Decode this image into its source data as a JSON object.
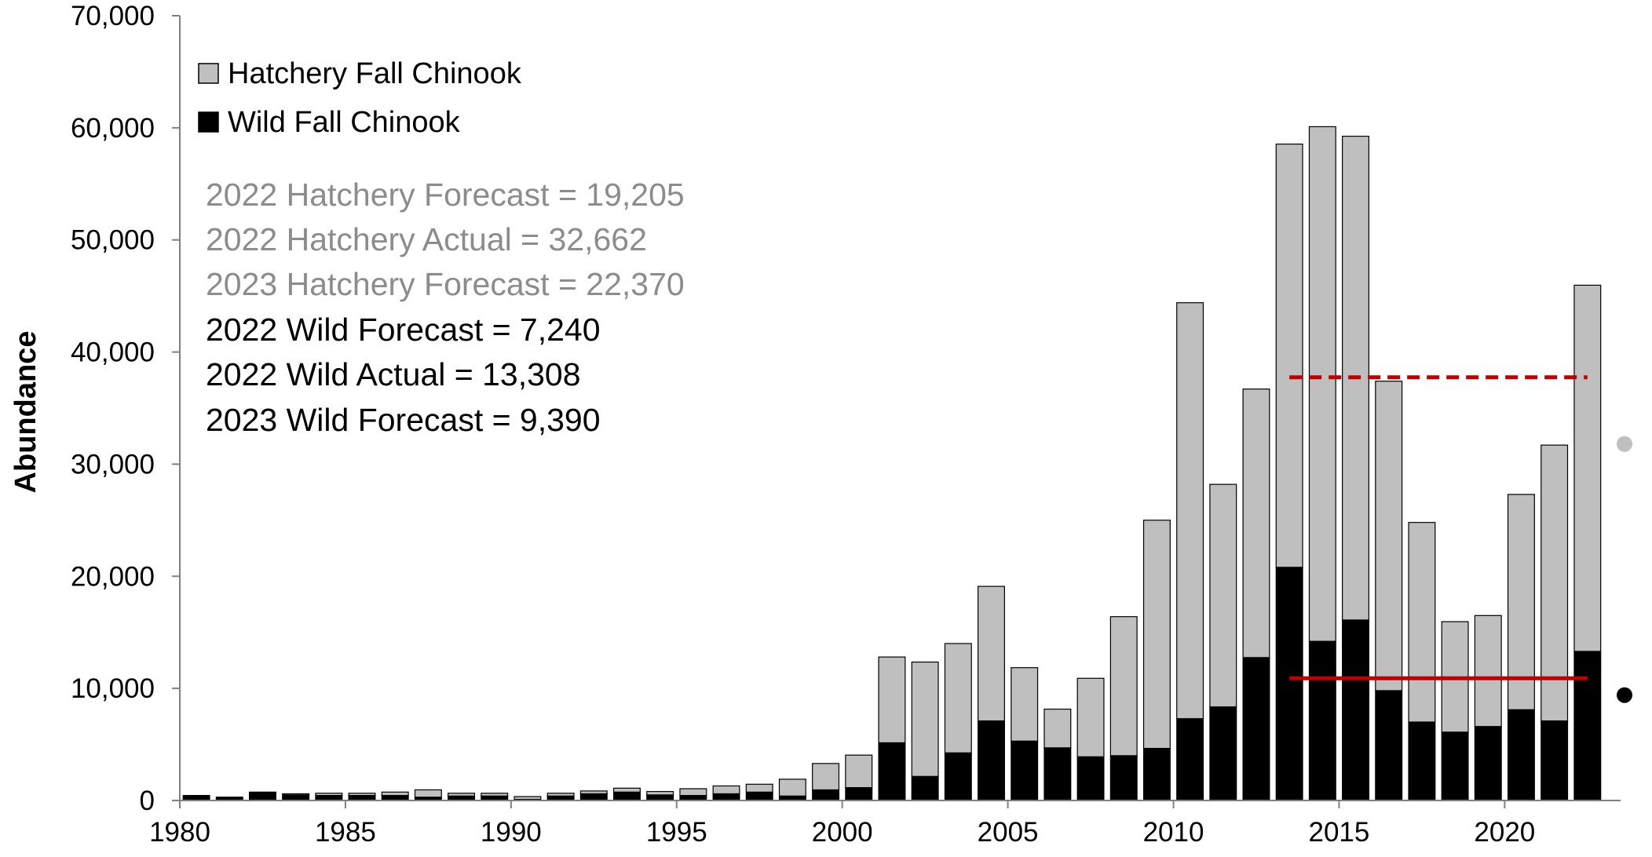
{
  "chart_data": {
    "type": "bar",
    "stacked": true,
    "ylabel": "Abundance",
    "xlabel": "",
    "ylim": [
      0,
      70000
    ],
    "y_ticks": [
      0,
      10000,
      20000,
      30000,
      40000,
      50000,
      60000,
      70000
    ],
    "y_tick_labels": [
      "0",
      "10,000",
      "20,000",
      "30,000",
      "40,000",
      "50,000",
      "60,000",
      "70,000"
    ],
    "x_tick_years": [
      1980,
      1985,
      1990,
      1995,
      2000,
      2005,
      2010,
      2015,
      2020
    ],
    "x_tick_labels": [
      "1980",
      "1985",
      "1990",
      "1995",
      "2000",
      "2005",
      "2010",
      "2015",
      "2020"
    ],
    "categories": [
      1980,
      1981,
      1982,
      1983,
      1984,
      1985,
      1986,
      1987,
      1988,
      1989,
      1990,
      1991,
      1992,
      1993,
      1994,
      1995,
      1996,
      1997,
      1998,
      1999,
      2000,
      2001,
      2002,
      2003,
      2004,
      2005,
      2006,
      2007,
      2008,
      2009,
      2010,
      2011,
      2012,
      2013,
      2014,
      2015,
      2016,
      2017,
      2018,
      2019,
      2020,
      2021,
      2022
    ],
    "series": [
      {
        "name": "Wild Fall Chinook",
        "color": "#000000",
        "values": [
          450,
          300,
          750,
          500,
          450,
          450,
          450,
          300,
          400,
          400,
          100,
          400,
          600,
          750,
          500,
          450,
          600,
          750,
          400,
          950,
          1150,
          5150,
          2150,
          4250,
          7100,
          5300,
          4700,
          3900,
          4000,
          4650,
          7300,
          8350,
          12750,
          20800,
          14200,
          16100,
          9800,
          7000,
          6100,
          6600,
          8100,
          7100,
          13300
        ]
      },
      {
        "name": "Hatchery Fall Chinook",
        "color": "#bfbfbf",
        "values": [
          0,
          0,
          0,
          100,
          200,
          200,
          300,
          650,
          250,
          250,
          250,
          250,
          250,
          350,
          300,
          600,
          700,
          700,
          1500,
          2350,
          2900,
          7650,
          10200,
          9750,
          12000,
          6550,
          3450,
          7000,
          12400,
          20350,
          37100,
          19850,
          23950,
          37750,
          45900,
          43150,
          27600,
          17800,
          9850,
          9900,
          19200,
          24600,
          32662
        ]
      }
    ],
    "forecast_lines": [
      {
        "label": "Hatchery forecast",
        "y": 37750,
        "x_start": 2013,
        "x_end": 2022,
        "style": "dashed",
        "color": "#c00000"
      },
      {
        "label": "Wild forecast",
        "y": 10900,
        "x_start": 2013,
        "x_end": 2022,
        "style": "solid",
        "color": "#c00000"
      }
    ],
    "forecast_points": [
      {
        "label": "2023 Hatchery Forecast",
        "x": 2023,
        "y": 31800,
        "color": "#bfbfbf"
      },
      {
        "label": "2023 Wild Forecast",
        "x": 2023,
        "y": 9400,
        "color": "#000000"
      }
    ],
    "legend": {
      "placement": "top-left",
      "items": [
        {
          "label": "Hatchery Fall Chinook",
          "color": "#bfbfbf"
        },
        {
          "label": "Wild Fall Chinook",
          "color": "#000000"
        }
      ]
    },
    "annotations": [
      {
        "text": "2022 Hatchery Forecast = 19,205",
        "color": "#8c8c8c"
      },
      {
        "text": "2022 Hatchery Actual = 32,662",
        "color": "#8c8c8c"
      },
      {
        "text": "2023 Hatchery Forecast = 22,370",
        "color": "#8c8c8c"
      },
      {
        "text": "2022 Wild Forecast = 7,240",
        "color": "#000000"
      },
      {
        "text": "2022 Wild Actual = 13,308",
        "color": "#000000"
      },
      {
        "text": "2023 Wild Forecast = 9,390",
        "color": "#000000"
      }
    ],
    "grid": false
  }
}
